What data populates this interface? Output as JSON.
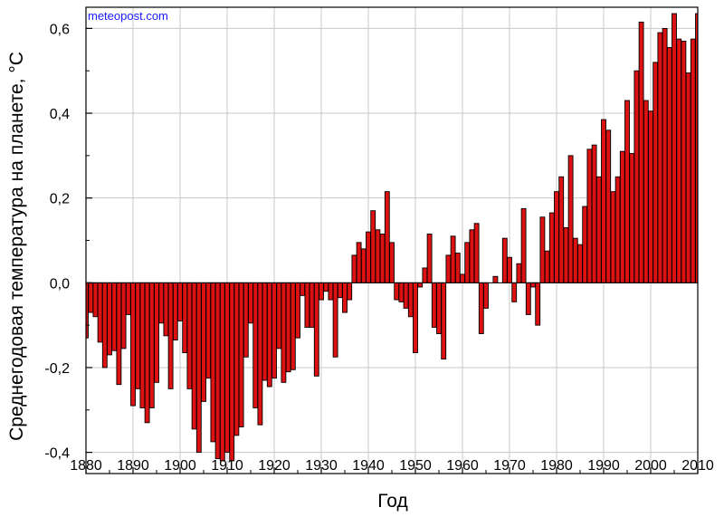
{
  "watermark": "meteopost.com",
  "chart_data": {
    "type": "bar",
    "xlabel": "Год",
    "ylabel": "Среднегодовая температура на планете, °C",
    "xlim": [
      1880,
      2010
    ],
    "ylim": [
      -0.45,
      0.65
    ],
    "x_ticks": [
      "1880",
      "1890",
      "1900",
      "1910",
      "1920",
      "1930",
      "1940",
      "1950",
      "1960",
      "1970",
      "1980",
      "1990",
      "2000",
      "2010"
    ],
    "y_ticks": [
      "-0,4",
      "-0,2",
      "0,0",
      "0,2",
      "0,4",
      "0,6"
    ],
    "grid": true,
    "bar_color": "#dd1111",
    "x": [
      1880,
      1881,
      1882,
      1883,
      1884,
      1885,
      1886,
      1887,
      1888,
      1889,
      1890,
      1891,
      1892,
      1893,
      1894,
      1895,
      1896,
      1897,
      1898,
      1899,
      1900,
      1901,
      1902,
      1903,
      1904,
      1905,
      1906,
      1907,
      1908,
      1909,
      1910,
      1911,
      1912,
      1913,
      1914,
      1915,
      1916,
      1917,
      1918,
      1919,
      1920,
      1921,
      1922,
      1923,
      1924,
      1925,
      1926,
      1927,
      1928,
      1929,
      1930,
      1931,
      1932,
      1933,
      1934,
      1935,
      1936,
      1937,
      1938,
      1939,
      1940,
      1941,
      1942,
      1943,
      1944,
      1945,
      1946,
      1947,
      1948,
      1949,
      1950,
      1951,
      1952,
      1953,
      1954,
      1955,
      1956,
      1957,
      1958,
      1959,
      1960,
      1961,
      1962,
      1963,
      1964,
      1965,
      1966,
      1967,
      1968,
      1969,
      1970,
      1971,
      1972,
      1973,
      1974,
      1975,
      1976,
      1977,
      1978,
      1979,
      1980,
      1981,
      1982,
      1983,
      1984,
      1985,
      1986,
      1987,
      1988,
      1989,
      1990,
      1991,
      1992,
      1993,
      1994,
      1995,
      1996,
      1997,
      1998,
      1999,
      2000,
      2001,
      2002,
      2003,
      2004,
      2005,
      2006,
      2007,
      2008,
      2009,
      2010
    ],
    "values": [
      -0.13,
      -0.07,
      -0.08,
      -0.14,
      -0.2,
      -0.17,
      -0.16,
      -0.24,
      -0.155,
      -0.075,
      -0.29,
      -0.25,
      -0.295,
      -0.33,
      -0.295,
      -0.235,
      -0.095,
      -0.125,
      -0.25,
      -0.135,
      -0.09,
      -0.165,
      -0.25,
      -0.345,
      -0.4,
      -0.28,
      -0.225,
      -0.375,
      -0.415,
      -0.42,
      -0.4,
      -0.42,
      -0.36,
      -0.34,
      -0.175,
      -0.095,
      -0.295,
      -0.335,
      -0.23,
      -0.245,
      -0.225,
      -0.155,
      -0.235,
      -0.21,
      -0.205,
      -0.13,
      -0.03,
      -0.105,
      -0.105,
      -0.22,
      -0.04,
      -0.02,
      -0.04,
      -0.175,
      -0.035,
      -0.07,
      -0.04,
      0.065,
      0.095,
      0.08,
      0.12,
      0.17,
      0.125,
      0.115,
      0.215,
      0.095,
      -0.04,
      -0.045,
      -0.06,
      -0.08,
      -0.165,
      -0.01,
      0.035,
      0.115,
      -0.105,
      -0.12,
      -0.18,
      0.065,
      0.11,
      0.07,
      0.02,
      0.095,
      0.125,
      0.14,
      -0.12,
      -0.06,
      0.0,
      0.015,
      0.0,
      0.105,
      0.06,
      -0.045,
      0.045,
      0.175,
      -0.075,
      -0.01,
      -0.1,
      0.155,
      0.075,
      0.165,
      0.215,
      0.25,
      0.13,
      0.3,
      0.105,
      0.09,
      0.18,
      0.315,
      0.325,
      0.25,
      0.385,
      0.36,
      0.215,
      0.25,
      0.31,
      0.43,
      0.305,
      0.5,
      0.615,
      0.43,
      0.405,
      0.52,
      0.59,
      0.6,
      0.555,
      0.635,
      0.575,
      0.57,
      0.495,
      0.575,
      0.635
    ]
  }
}
